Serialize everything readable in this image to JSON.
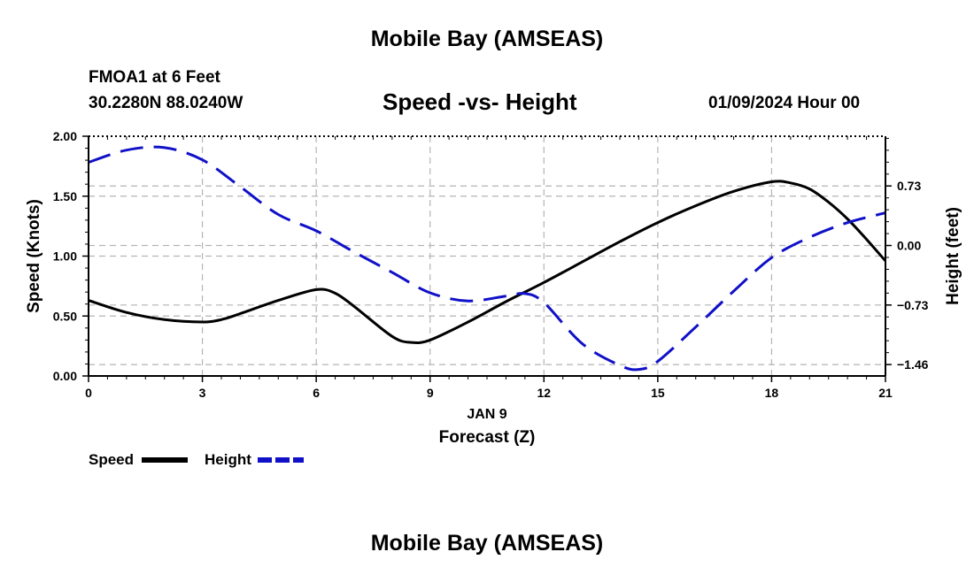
{
  "header": {
    "title": "Mobile Bay (AMSEAS)",
    "station": "FMOA1 at 6 Feet",
    "coords": "30.2280N  88.0240W",
    "subtitle": "Speed -vs- Height",
    "datetime": "01/09/2024 Hour 00"
  },
  "footer": {
    "title": "Mobile Bay (AMSEAS)"
  },
  "legend": {
    "speed_label": "Speed",
    "height_label": "Height"
  },
  "colors": {
    "speed": "#000000",
    "height": "#1010c8",
    "grid": "#b4b4b4"
  },
  "chart_data": {
    "type": "line",
    "title": "Speed -vs- Height",
    "xlabel": "Forecast (Z)",
    "date_label": "JAN 9",
    "ylabel": "Speed (Knots)",
    "y2label": "Height (feet)",
    "xlim": [
      0,
      21
    ],
    "ylim": [
      0,
      2.0
    ],
    "y2lim": [
      -1.6,
      1.34
    ],
    "x_ticks": [
      0,
      3,
      6,
      9,
      12,
      15,
      18,
      21
    ],
    "x_tick_labels": [
      "0",
      "3",
      "6",
      "9",
      "12",
      "15",
      "18",
      "21"
    ],
    "y_ticks": [
      0,
      0.5,
      1.0,
      1.5,
      2.0
    ],
    "y_tick_labels": [
      "0.00",
      "0.50",
      "1.00",
      "1.50",
      "2.00"
    ],
    "y2_ticks": [
      0.73,
      0.0,
      -0.73,
      -1.46
    ],
    "y2_tick_labels": [
      "0.73",
      "0.00",
      "−0.73",
      "−1.46"
    ],
    "grid": true,
    "legend_position": "bottom-left",
    "series": [
      {
        "name": "Speed",
        "axis": "left",
        "style": "solid",
        "x": [
          0,
          1,
          2,
          3,
          3.5,
          4,
          5,
          6,
          6.5,
          7,
          8,
          8.5,
          9,
          10,
          11,
          12,
          13,
          14,
          15,
          16,
          17,
          18,
          18.5,
          19,
          19.5,
          20,
          20.5,
          21
        ],
        "values": [
          0.63,
          0.53,
          0.47,
          0.45,
          0.47,
          0.52,
          0.63,
          0.72,
          0.69,
          0.58,
          0.33,
          0.28,
          0.3,
          0.45,
          0.62,
          0.78,
          0.95,
          1.12,
          1.28,
          1.42,
          1.54,
          1.62,
          1.61,
          1.56,
          1.45,
          1.31,
          1.14,
          0.96
        ]
      },
      {
        "name": "Height",
        "axis": "right",
        "style": "dashed",
        "x": [
          0,
          1,
          2,
          3,
          4,
          5,
          6,
          7,
          8,
          9,
          10,
          11,
          11.5,
          12,
          13,
          14,
          14.5,
          15,
          16,
          17,
          18,
          19,
          20,
          21
        ],
        "values": [
          1.02,
          1.17,
          1.2,
          1.05,
          0.72,
          0.38,
          0.18,
          -0.08,
          -0.33,
          -0.58,
          -0.68,
          -0.62,
          -0.59,
          -0.7,
          -1.2,
          -1.47,
          -1.52,
          -1.42,
          -1.0,
          -0.56,
          -0.15,
          0.1,
          0.28,
          0.4
        ]
      }
    ]
  }
}
